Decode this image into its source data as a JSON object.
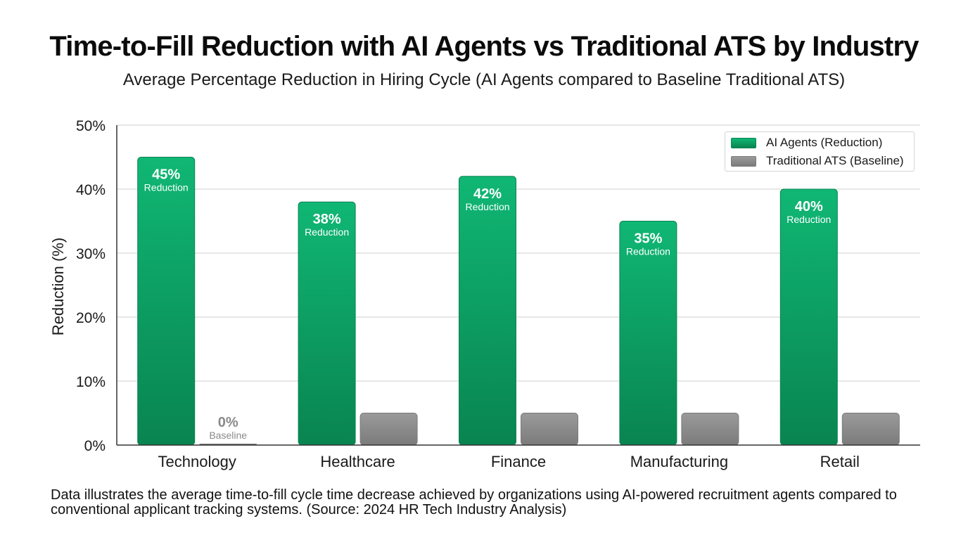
{
  "title": "Time-to-Fill Reduction with AI Agents vs Traditional ATS by Industry",
  "subtitle": "Average Percentage Reduction in Hiring Cycle (AI Agents compared to Baseline Traditional ATS)",
  "caption": "Data illustrates the average time-to-fill cycle time decrease achieved by organizations using AI-powered recruitment agents compared to conventional applicant tracking systems. (Source: 2024 HR Tech Industry Analysis)",
  "colors": {
    "ai_top": "#10b774",
    "ai_bottom": "#098451",
    "baseline_top": "#9a9a9a",
    "baseline_bottom": "#7b7b7b",
    "grid": "#cfcfcf",
    "axis": "#333333"
  },
  "chart_data": {
    "type": "bar",
    "ylabel": "Reduction (%)",
    "xlabel": "",
    "ylim": [
      0,
      50
    ],
    "yticks": [
      0,
      10,
      20,
      30,
      40,
      50
    ],
    "ytick_labels": [
      "0%",
      "10%",
      "20%",
      "30%",
      "40%",
      "50%"
    ],
    "grid": true,
    "legend_position": "top-right",
    "categories": [
      "Technology",
      "Healthcare",
      "Finance",
      "Manufacturing",
      "Retail"
    ],
    "series": [
      {
        "name": "AI Agents (Reduction)",
        "values": [
          45,
          38,
          42,
          35,
          40
        ],
        "value_labels": [
          "45%",
          "38%",
          "42%",
          "35%",
          "40%"
        ],
        "sub_label": "Reduction"
      },
      {
        "name": "Traditional ATS (Baseline)",
        "values": [
          0,
          5,
          5,
          5,
          5
        ],
        "value_labels": [
          "0%",
          "",
          "",
          "",
          ""
        ],
        "sub_label": "Baseline"
      }
    ]
  }
}
